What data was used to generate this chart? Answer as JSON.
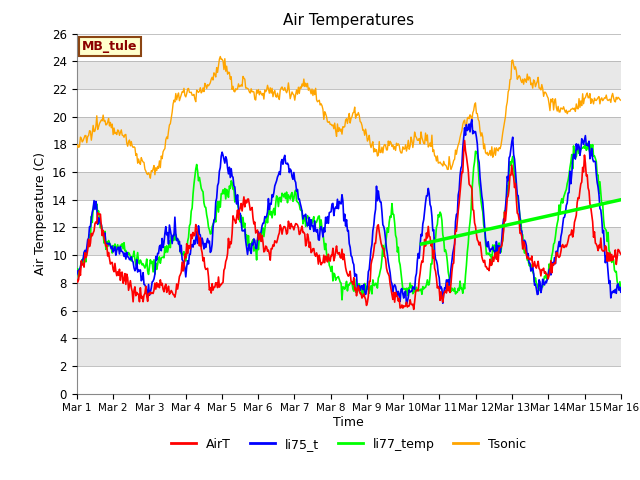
{
  "title": "Air Temperatures",
  "xlabel": "Time",
  "ylabel": "Air Temperature (C)",
  "ylim": [
    0,
    26
  ],
  "xlim": [
    0,
    15
  ],
  "xtick_labels": [
    "Mar 1",
    "Mar 2",
    "Mar 3",
    "Mar 4",
    "Mar 5",
    "Mar 6",
    "Mar 7",
    "Mar 8",
    "Mar 9",
    "Mar 10",
    "Mar 11",
    "Mar 12",
    "Mar 13",
    "Mar 14",
    "Mar 15",
    "Mar 16"
  ],
  "ytick_vals": [
    0,
    2,
    4,
    6,
    8,
    10,
    12,
    14,
    16,
    18,
    20,
    22,
    24,
    26
  ],
  "annotation": "MB_tule",
  "legend_labels": [
    "AirT",
    "li75_t",
    "li77_temp",
    "Tsonic"
  ],
  "legend_colors": [
    "red",
    "blue",
    "green",
    "orange"
  ],
  "bg_color": "#d8d8d8",
  "band_color": "#f0f0f0",
  "white_band": "#ffffff",
  "trend_x": [
    9.5,
    15
  ],
  "trend_y": [
    10.8,
    14.0
  ],
  "line_colors": {
    "AirT": "red",
    "li75_t": "blue",
    "li77_temp": "green",
    "Tsonic": "orange"
  },
  "figsize": [
    6.4,
    4.8
  ],
  "dpi": 100
}
